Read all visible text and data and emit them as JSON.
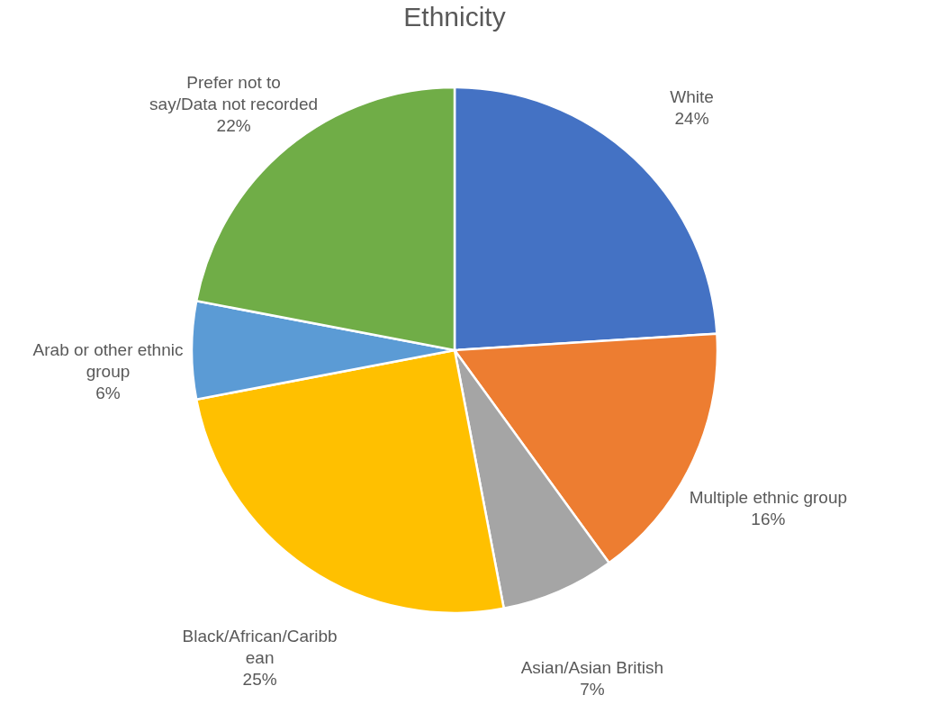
{
  "chart_data": {
    "type": "pie",
    "title": "Ethnicity",
    "categories": [
      "White",
      "Multiple ethnic group",
      "Asian/Asian British",
      "Black/African/Caribbean",
      "Arab or other ethnic group",
      "Prefer not to say/Data not recorded"
    ],
    "values": [
      24,
      16,
      7,
      25,
      6,
      22
    ],
    "colors": [
      "#4472c4",
      "#ed7d31",
      "#a5a5a5",
      "#ffc000",
      "#5b9bd5",
      "#70ad47"
    ],
    "value_labels": [
      "24%",
      "16%",
      "7%",
      "25%",
      "6%",
      "22%"
    ],
    "legend": false
  }
}
